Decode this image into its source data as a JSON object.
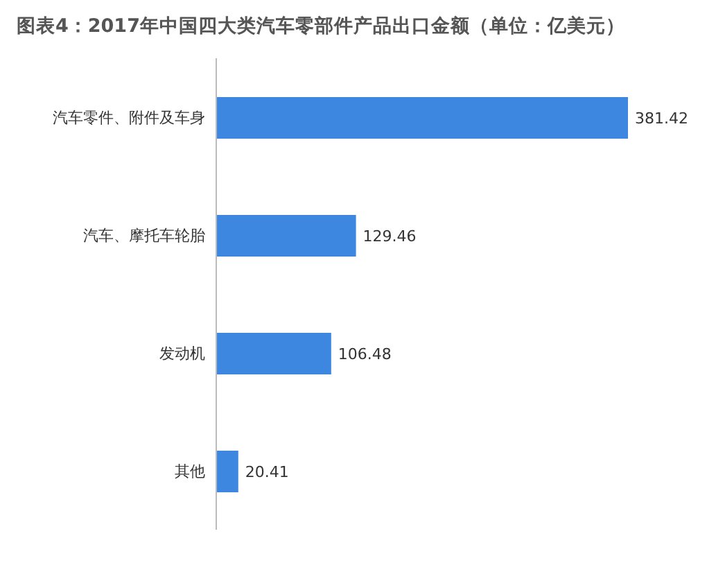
{
  "chart_data": {
    "type": "bar",
    "orientation": "horizontal",
    "title": "图表4：2017年中国四大类汽车零部件产品出口金额（单位：亿美元）",
    "categories": [
      "汽车零件、附件及车身",
      "汽车、摩托车轮胎",
      "发动机",
      "其他"
    ],
    "values": [
      381.42,
      129.46,
      106.48,
      20.41
    ],
    "color": "#3d87e0",
    "data_labels": true,
    "tick_labels": "y"
  }
}
